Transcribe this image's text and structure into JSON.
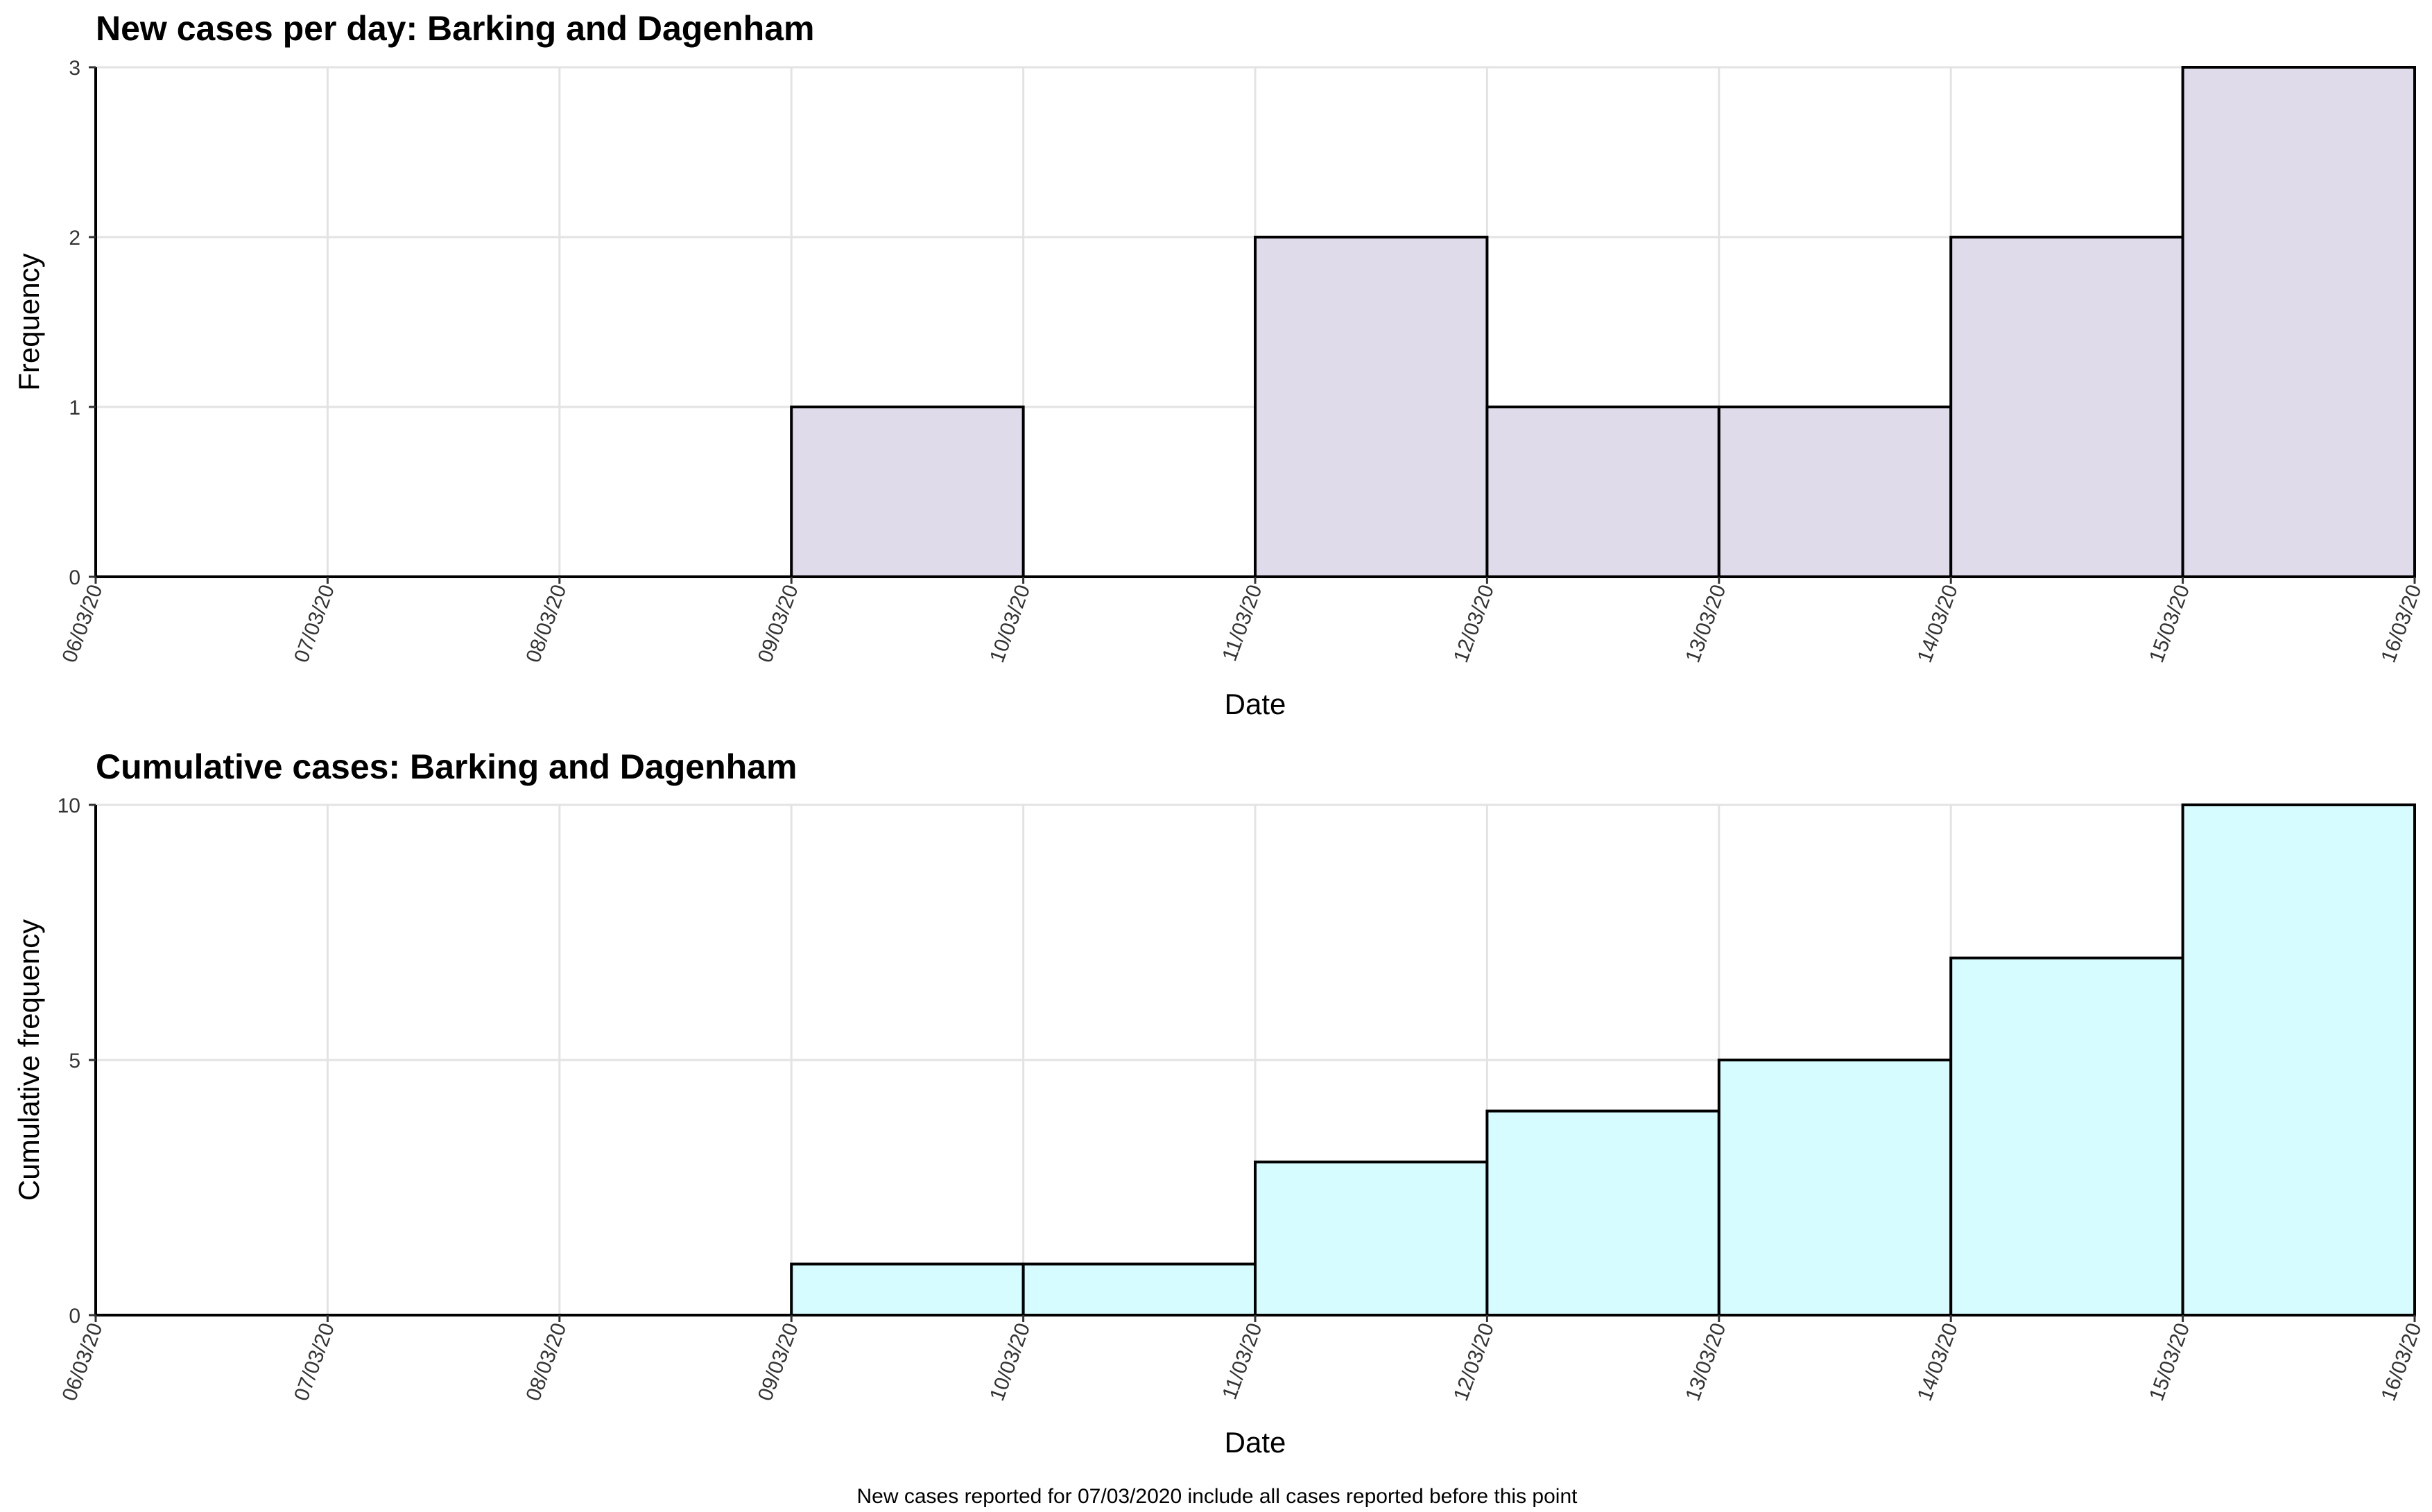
{
  "chart_data": [
    {
      "type": "bar",
      "title": "New cases per day: Barking and Dagenham",
      "xlabel": "Date",
      "ylabel": "Frequency",
      "x_ticks": [
        "06/03/20",
        "07/03/20",
        "08/03/20",
        "09/03/20",
        "10/03/20",
        "11/03/20",
        "12/03/20",
        "13/03/20",
        "14/03/20",
        "15/03/20",
        "16/03/20"
      ],
      "categories": [
        "06/03/20",
        "07/03/20",
        "08/03/20",
        "09/03/20",
        "10/03/20",
        "11/03/20",
        "12/03/20",
        "13/03/20",
        "14/03/20",
        "15/03/20"
      ],
      "values": [
        0,
        0,
        0,
        1,
        0,
        2,
        1,
        1,
        2,
        3
      ],
      "ylim": [
        0,
        3
      ],
      "y_ticks": [
        0,
        1,
        2,
        3
      ],
      "grid": true,
      "colors": {
        "fill": "#e0dbea",
        "stroke": "#000000"
      }
    },
    {
      "type": "bar",
      "title": "Cumulative cases: Barking and Dagenham",
      "xlabel": "Date",
      "ylabel": "Cumulative frequency",
      "x_ticks": [
        "06/03/20",
        "07/03/20",
        "08/03/20",
        "09/03/20",
        "10/03/20",
        "11/03/20",
        "12/03/20",
        "13/03/20",
        "14/03/20",
        "15/03/20",
        "16/03/20"
      ],
      "categories": [
        "06/03/20",
        "07/03/20",
        "08/03/20",
        "09/03/20",
        "10/03/20",
        "11/03/20",
        "12/03/20",
        "13/03/20",
        "14/03/20",
        "15/03/20"
      ],
      "values": [
        0,
        0,
        0,
        1,
        1,
        3,
        4,
        5,
        7,
        10
      ],
      "ylim": [
        0,
        10
      ],
      "y_ticks": [
        0,
        5,
        10
      ],
      "grid": true,
      "colors": {
        "fill": "#d6fcff",
        "stroke": "#000000"
      }
    }
  ],
  "caption": "New cases reported for 07/03/2020 include all cases reported before this point"
}
